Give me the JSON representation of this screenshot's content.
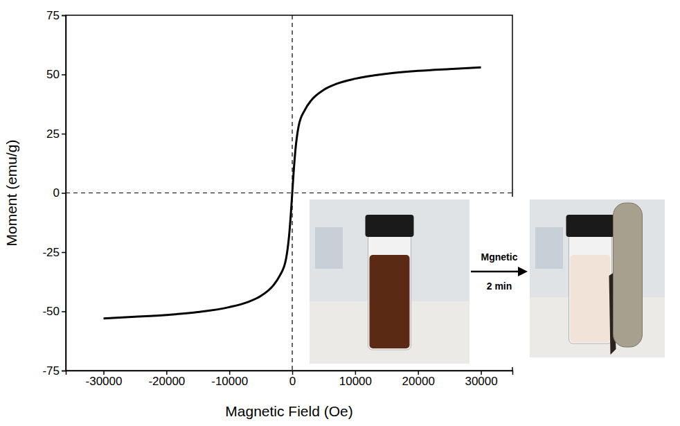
{
  "chart_data": {
    "type": "line",
    "x_label": "Magnetic Field (Oe)",
    "y_label": "Moment (emu/g)",
    "x": [
      -30000,
      -25000,
      -20000,
      -15000,
      -10000,
      -7000,
      -5000,
      -3000,
      -2000,
      -1000,
      -500,
      -200,
      0,
      200,
      500,
      1000,
      2000,
      3000,
      5000,
      7000,
      10000,
      15000,
      20000,
      25000,
      30000
    ],
    "values": [
      -53,
      -52.3,
      -51.5,
      -50.3,
      -48.2,
      -46,
      -43.5,
      -39,
      -35,
      -28,
      -18,
      -8,
      0,
      8,
      18,
      28,
      35,
      39,
      43.5,
      46,
      48.2,
      50.3,
      51.5,
      52.3,
      53
    ],
    "color": "#000000",
    "line_style": "solid",
    "xlim": [
      -36000,
      35000
    ],
    "xticks": [
      -30000,
      -20000,
      -10000,
      0,
      10000,
      20000,
      30000
    ],
    "ylim": [
      -75,
      75
    ],
    "yticks": [
      -75,
      -50,
      -25,
      0,
      25,
      50,
      75
    ],
    "grid": false,
    "reference_lines": [
      {
        "axis": "x",
        "value": 0,
        "line_style": "dashed"
      },
      {
        "axis": "y",
        "value": 0,
        "line_style": "dashed"
      }
    ],
    "annotations": [
      {
        "text": "Mgnetic"
      },
      {
        "text": "2 min"
      }
    ]
  }
}
